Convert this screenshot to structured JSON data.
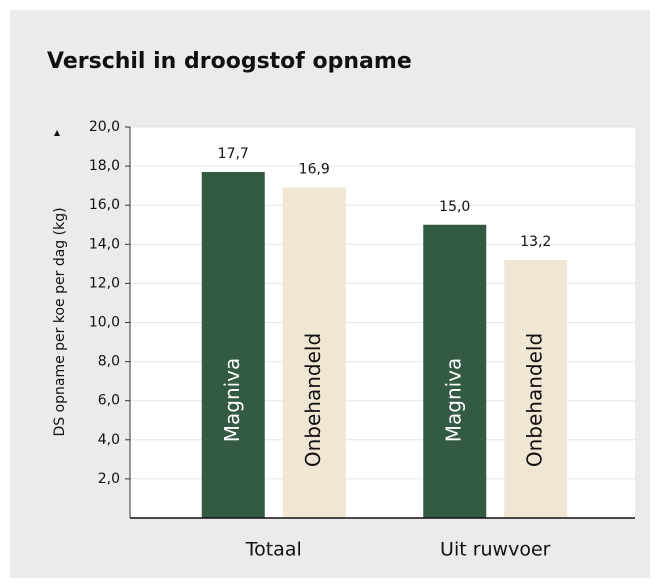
{
  "chart_data": {
    "type": "bar",
    "title": "Verschil in droogstof opname",
    "y_label": "DS opname per koe per dag (kg)",
    "categories": [
      "Totaal",
      "Uit ruwvoer"
    ],
    "series": [
      {
        "name": "Magniva",
        "color": "#335a43",
        "values": [
          17.7,
          15.0
        ],
        "value_labels": [
          "17,7",
          "15,0"
        ]
      },
      {
        "name": "Onbehandeld",
        "color": "#f0e6d4",
        "values": [
          16.9,
          13.2
        ],
        "value_labels": [
          "16,9",
          "13,2"
        ]
      }
    ],
    "ylim": [
      0,
      20
    ],
    "yticks": [
      {
        "value": 2,
        "label": "2,0"
      },
      {
        "value": 4,
        "label": "4,0"
      },
      {
        "value": 6,
        "label": "6,0"
      },
      {
        "value": 8,
        "label": "8,0"
      },
      {
        "value": 10,
        "label": "10,0"
      },
      {
        "value": 12,
        "label": "12,0"
      },
      {
        "value": 14,
        "label": "14,0"
      },
      {
        "value": 16,
        "label": "16,0"
      },
      {
        "value": 18,
        "label": "18,0"
      },
      {
        "value": 20,
        "label": "20,0"
      }
    ],
    "grid": true
  }
}
